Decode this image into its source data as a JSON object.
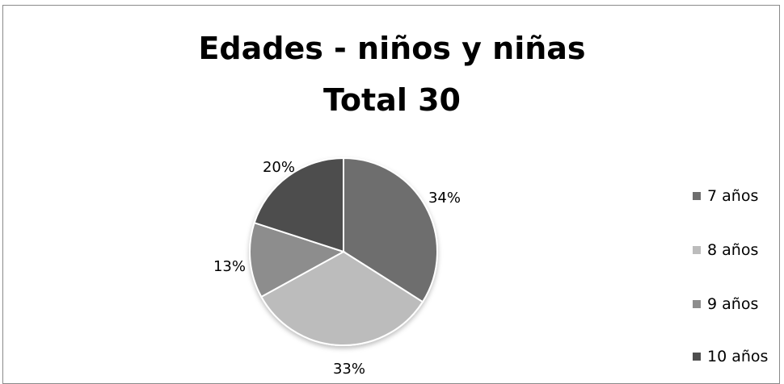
{
  "chart_data": {
    "type": "pie",
    "title_lines": [
      "Edades - niños y niñas",
      "Total 30"
    ],
    "categories": [
      "7 años",
      "8 años",
      "9 años",
      "10 años"
    ],
    "values": [
      34,
      33,
      13,
      20
    ],
    "labels": [
      "34%",
      "33%",
      "13%",
      "20%"
    ],
    "colors": [
      "#6e6e6e",
      "#bcbcbc",
      "#8d8d8d",
      "#4e4e4e"
    ],
    "legend_position": "right"
  }
}
